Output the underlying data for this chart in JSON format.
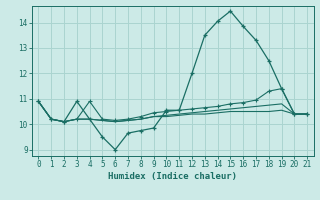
{
  "title": "",
  "xlabel": "Humidex (Indice chaleur)",
  "bg_color": "#cceae7",
  "grid_color": "#aad4d0",
  "line_color": "#1a6e64",
  "xlim": [
    -0.5,
    21.5
  ],
  "ylim": [
    8.75,
    14.65
  ],
  "xticks": [
    0,
    1,
    2,
    3,
    4,
    5,
    6,
    7,
    8,
    9,
    10,
    11,
    12,
    13,
    14,
    15,
    16,
    17,
    18,
    19,
    20,
    21
  ],
  "yticks": [
    9,
    10,
    11,
    12,
    13,
    14
  ],
  "series1_x": [
    0,
    1,
    2,
    3,
    4,
    5,
    6,
    7,
    8,
    9,
    10,
    11,
    12,
    13,
    14,
    15,
    16,
    17,
    18,
    19,
    20,
    21
  ],
  "series1_y": [
    10.9,
    10.2,
    10.1,
    10.9,
    10.2,
    9.5,
    9.0,
    9.65,
    9.75,
    9.85,
    10.55,
    10.55,
    12.0,
    13.5,
    14.05,
    14.45,
    13.85,
    13.3,
    12.5,
    11.4,
    10.4,
    10.4
  ],
  "series2_x": [
    0,
    1,
    2,
    3,
    4,
    5,
    6,
    7,
    8,
    9,
    10,
    11,
    12,
    13,
    14,
    15,
    16,
    17,
    18,
    19,
    20,
    21
  ],
  "series2_y": [
    10.9,
    10.2,
    10.1,
    10.2,
    10.9,
    10.2,
    10.15,
    10.2,
    10.3,
    10.45,
    10.5,
    10.55,
    10.6,
    10.65,
    10.7,
    10.8,
    10.85,
    10.95,
    11.3,
    11.4,
    10.4,
    10.4
  ],
  "series3_x": [
    0,
    1,
    2,
    3,
    4,
    5,
    6,
    7,
    8,
    9,
    10,
    11,
    12,
    13,
    14,
    15,
    16,
    17,
    18,
    19,
    20,
    21
  ],
  "series3_y": [
    10.9,
    10.2,
    10.1,
    10.2,
    10.2,
    10.15,
    10.1,
    10.15,
    10.2,
    10.3,
    10.35,
    10.4,
    10.45,
    10.5,
    10.55,
    10.6,
    10.65,
    10.7,
    10.75,
    10.8,
    10.4,
    10.4
  ],
  "series4_x": [
    0,
    1,
    2,
    3,
    4,
    5,
    6,
    7,
    8,
    9,
    10,
    11,
    12,
    13,
    14,
    15,
    16,
    17,
    18,
    19,
    20,
    21
  ],
  "series4_y": [
    10.9,
    10.2,
    10.1,
    10.2,
    10.2,
    10.15,
    10.1,
    10.15,
    10.2,
    10.3,
    10.3,
    10.35,
    10.4,
    10.4,
    10.45,
    10.5,
    10.5,
    10.5,
    10.5,
    10.55,
    10.4,
    10.4
  ]
}
